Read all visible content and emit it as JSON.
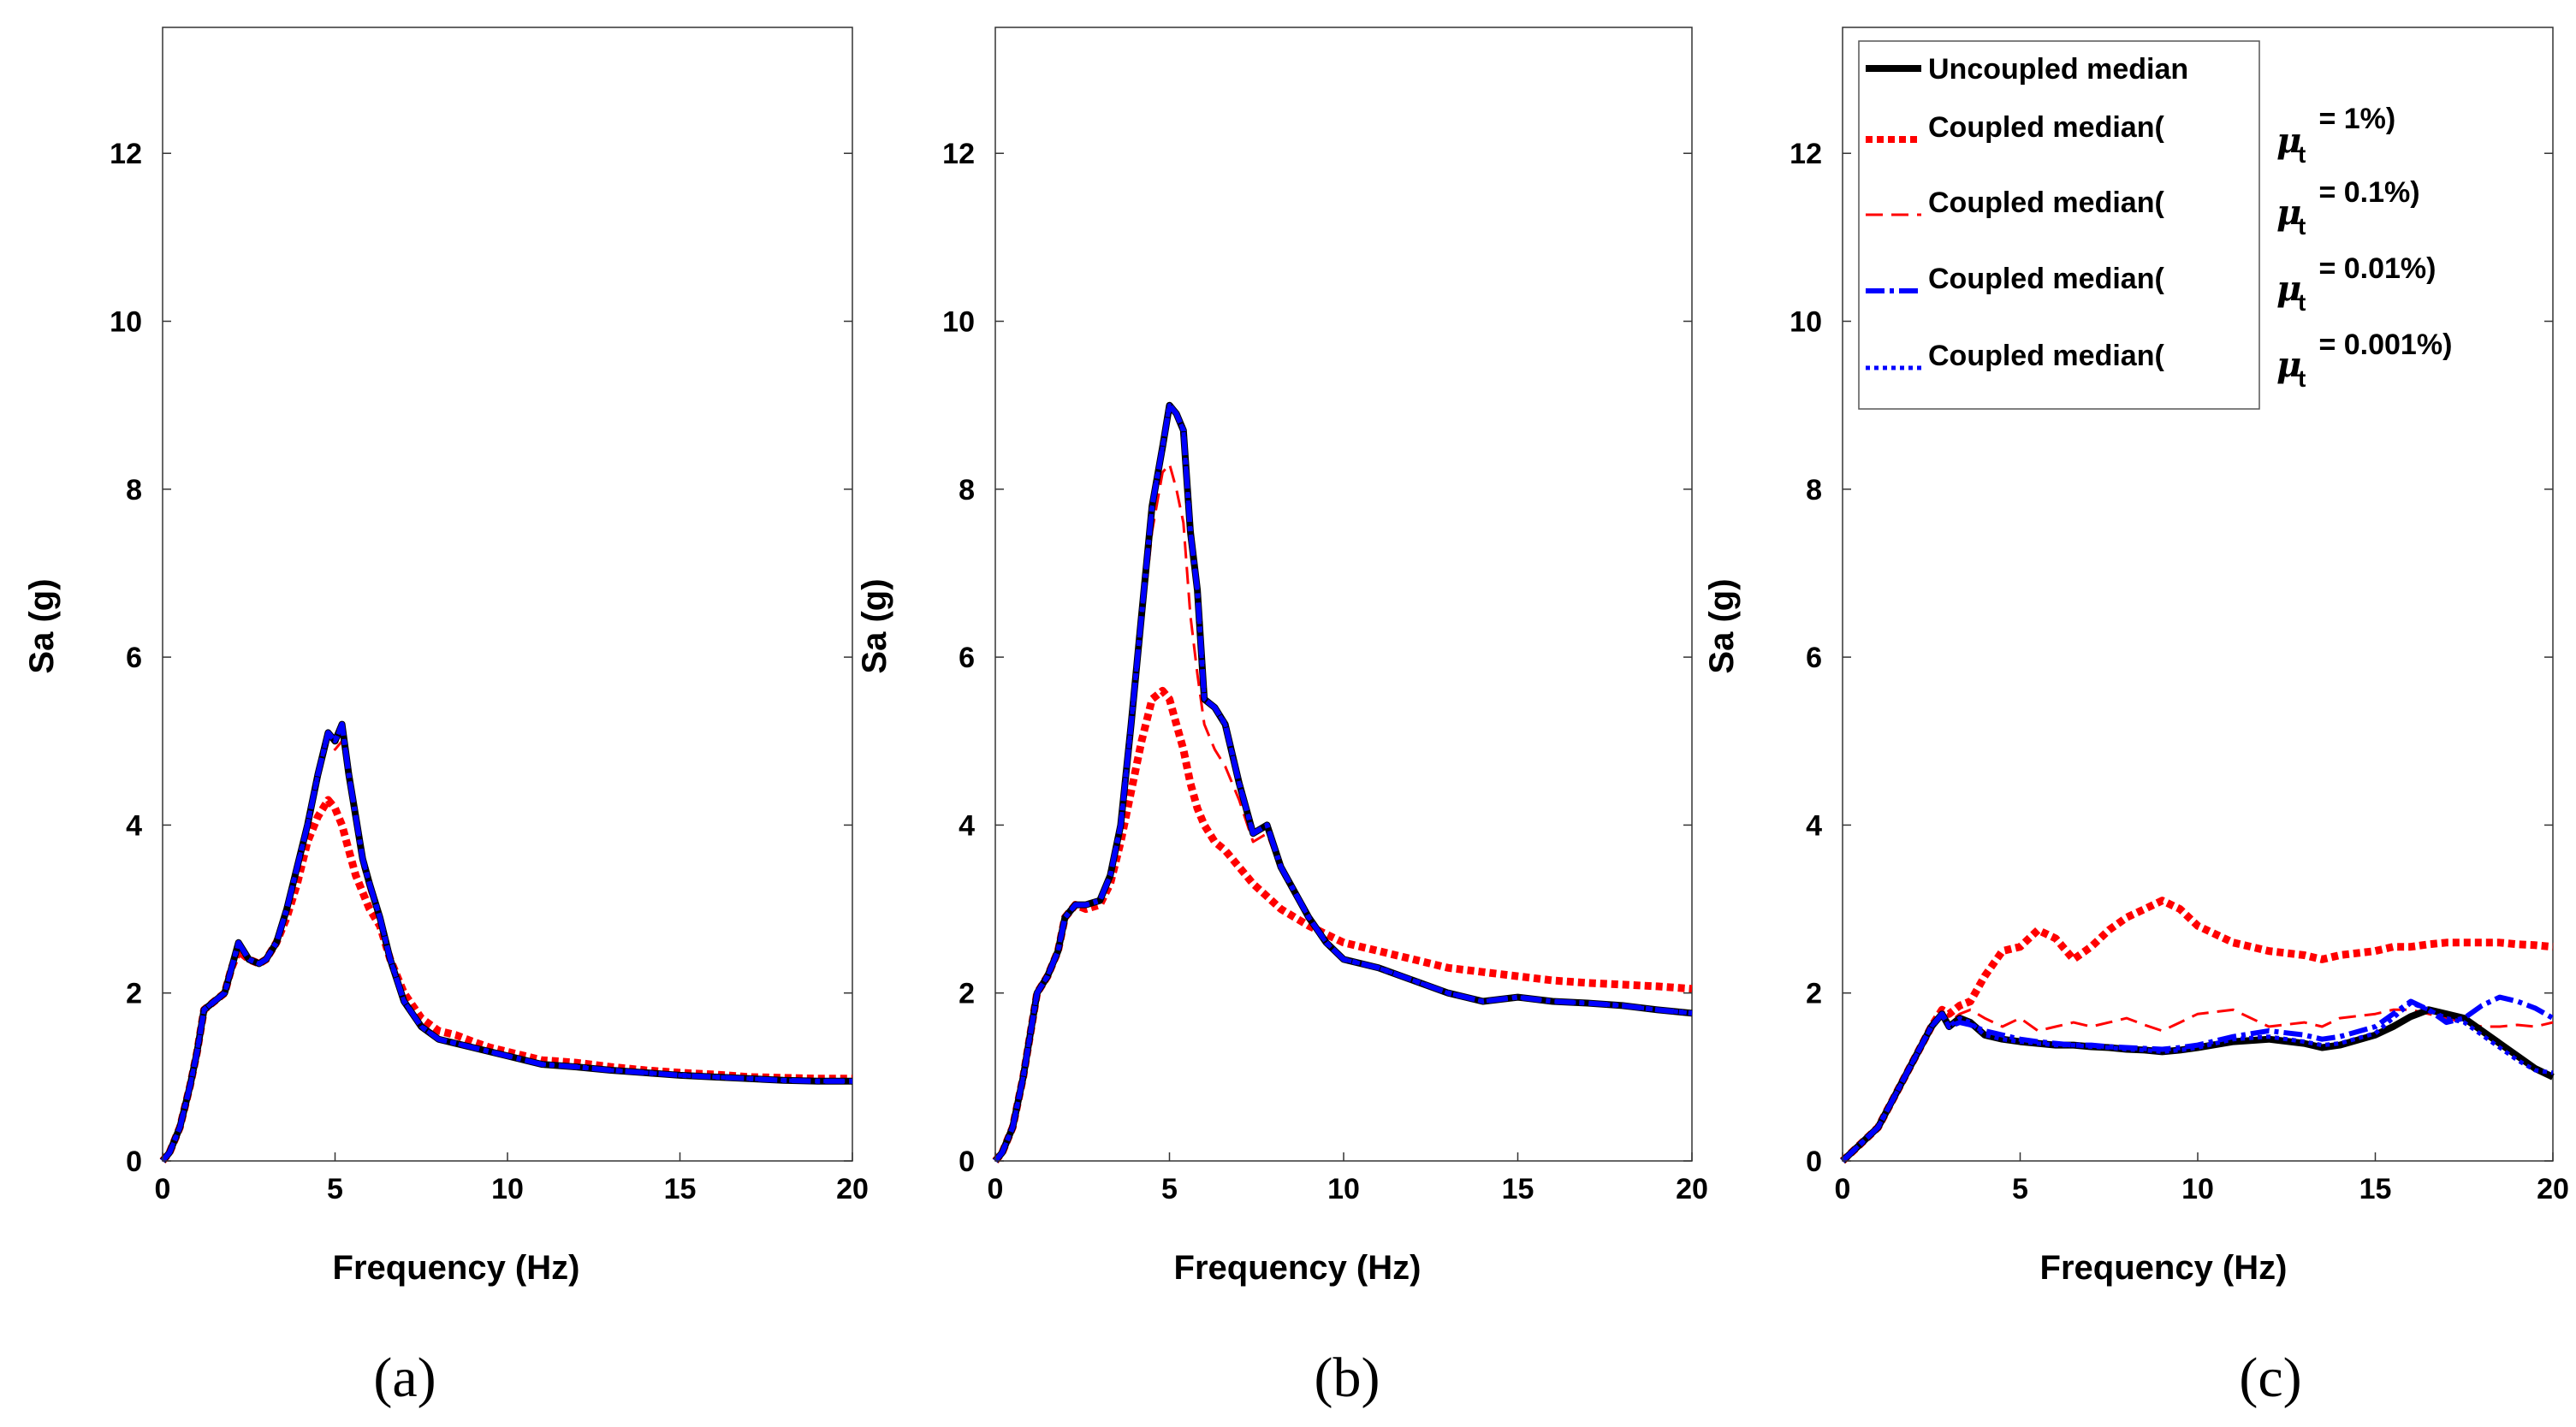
{
  "colors": {
    "uncoupled": "#000000",
    "coupled_1": "#ff0000",
    "coupled_01": "#ff0000",
    "coupled_001": "#0000ff",
    "coupled_0001": "#0000ff"
  },
  "legend": {
    "items": [
      {
        "key": "uncoupled",
        "label": "Uncoupled median",
        "mu_value": ""
      },
      {
        "key": "coupled_1",
        "label": "Coupled median(",
        "mu_value": " = 1%)"
      },
      {
        "key": "coupled_01",
        "label": "Coupled median(",
        "mu_value": " = 0.1%)"
      },
      {
        "key": "coupled_001",
        "label": "Coupled median(",
        "mu_value": " = 0.01%)"
      },
      {
        "key": "coupled_0001",
        "label": "Coupled median(",
        "mu_value": " = 0.001%)"
      }
    ],
    "mu_symbol": "μ",
    "mu_subscript": "t",
    "placement": "top-right"
  },
  "chart_data": [
    {
      "type": "line",
      "panel_label": "(a)",
      "xlabel": "Frequency (Hz)",
      "ylabel": "Sa (g)",
      "xlim": [
        0,
        20
      ],
      "ylim": [
        0,
        13.5
      ],
      "xticks": [
        "0",
        "5",
        "10",
        "15",
        "20"
      ],
      "yticks": [
        "0",
        "2",
        "4",
        "6",
        "8",
        "10",
        "12"
      ],
      "x": [
        0,
        0.2,
        0.5,
        0.8,
        1.0,
        1.2,
        1.5,
        1.8,
        2.0,
        2.2,
        2.5,
        2.8,
        3.0,
        3.3,
        3.6,
        3.9,
        4.2,
        4.5,
        4.8,
        5.0,
        5.2,
        5.4,
        5.6,
        5.8,
        6.0,
        6.3,
        6.6,
        7.0,
        7.5,
        8.0,
        8.5,
        9.0,
        9.5,
        10,
        11,
        12,
        13,
        14,
        15,
        16,
        17,
        18,
        19,
        20
      ],
      "series": [
        {
          "name": "Uncoupled median",
          "key": "uncoupled",
          "values": [
            0,
            0.1,
            0.4,
            0.9,
            1.3,
            1.8,
            1.9,
            2.0,
            2.3,
            2.6,
            2.4,
            2.35,
            2.4,
            2.6,
            3.0,
            3.5,
            4.0,
            4.6,
            5.1,
            5.0,
            5.2,
            4.6,
            4.1,
            3.6,
            3.3,
            2.9,
            2.4,
            1.9,
            1.6,
            1.45,
            1.4,
            1.35,
            1.3,
            1.25,
            1.15,
            1.12,
            1.08,
            1.05,
            1.02,
            1.0,
            0.98,
            0.96,
            0.95,
            0.95
          ]
        },
        {
          "name": "Coupled median(μt = 1%)",
          "key": "coupled_1",
          "values": [
            0,
            0.1,
            0.4,
            0.9,
            1.3,
            1.8,
            1.9,
            2.0,
            2.3,
            2.5,
            2.4,
            2.35,
            2.4,
            2.6,
            2.9,
            3.3,
            3.8,
            4.1,
            4.3,
            4.2,
            4.0,
            3.7,
            3.4,
            3.2,
            3.0,
            2.8,
            2.4,
            2.0,
            1.7,
            1.55,
            1.5,
            1.42,
            1.35,
            1.3,
            1.2,
            1.17,
            1.12,
            1.08,
            1.05,
            1.03,
            1.0,
            0.99,
            0.98,
            0.98
          ]
        },
        {
          "name": "Coupled median(μt = 0.1%)",
          "key": "coupled_01",
          "values": [
            0,
            0.1,
            0.4,
            0.9,
            1.3,
            1.8,
            1.9,
            2.0,
            2.3,
            2.6,
            2.4,
            2.35,
            2.4,
            2.6,
            3.0,
            3.5,
            4.0,
            4.5,
            5.0,
            4.9,
            5.0,
            4.5,
            4.0,
            3.5,
            3.2,
            2.9,
            2.4,
            1.9,
            1.6,
            1.45,
            1.4,
            1.35,
            1.3,
            1.25,
            1.15,
            1.12,
            1.08,
            1.05,
            1.02,
            1.0,
            0.98,
            0.96,
            0.95,
            0.95
          ]
        },
        {
          "name": "Coupled median(μt = 0.01%)",
          "key": "coupled_001",
          "values": [
            0,
            0.1,
            0.4,
            0.9,
            1.3,
            1.8,
            1.9,
            2.0,
            2.3,
            2.6,
            2.4,
            2.35,
            2.4,
            2.6,
            3.0,
            3.5,
            4.0,
            4.6,
            5.1,
            5.0,
            5.2,
            4.6,
            4.1,
            3.6,
            3.3,
            2.9,
            2.4,
            1.9,
            1.6,
            1.45,
            1.4,
            1.35,
            1.3,
            1.25,
            1.15,
            1.12,
            1.08,
            1.05,
            1.02,
            1.0,
            0.98,
            0.96,
            0.95,
            0.95
          ]
        },
        {
          "name": "Coupled median(μt = 0.001%)",
          "key": "coupled_0001",
          "values": [
            0,
            0.1,
            0.4,
            0.9,
            1.3,
            1.8,
            1.9,
            2.0,
            2.3,
            2.6,
            2.4,
            2.35,
            2.4,
            2.6,
            3.0,
            3.5,
            4.0,
            4.6,
            5.1,
            5.0,
            5.2,
            4.6,
            4.1,
            3.6,
            3.3,
            2.9,
            2.4,
            1.9,
            1.6,
            1.45,
            1.4,
            1.35,
            1.3,
            1.25,
            1.15,
            1.12,
            1.08,
            1.05,
            1.02,
            1.0,
            0.98,
            0.96,
            0.95,
            0.95
          ]
        }
      ]
    },
    {
      "type": "line",
      "panel_label": "(b)",
      "xlabel": "Frequency (Hz)",
      "ylabel": "Sa (g)",
      "xlim": [
        0,
        20
      ],
      "ylim": [
        0,
        13.5
      ],
      "xticks": [
        "0",
        "5",
        "10",
        "15",
        "20"
      ],
      "yticks": [
        "0",
        "2",
        "4",
        "6",
        "8",
        "10",
        "12"
      ],
      "x": [
        0,
        0.2,
        0.5,
        0.8,
        1.0,
        1.2,
        1.5,
        1.8,
        2.0,
        2.3,
        2.6,
        3.0,
        3.3,
        3.6,
        3.9,
        4.2,
        4.5,
        4.8,
        5.0,
        5.2,
        5.4,
        5.6,
        5.8,
        6.0,
        6.3,
        6.6,
        7.0,
        7.4,
        7.8,
        8.2,
        8.6,
        9.0,
        9.5,
        10,
        11,
        12,
        13,
        14,
        15,
        16,
        17,
        18,
        19,
        20
      ],
      "series": [
        {
          "name": "Uncoupled median",
          "key": "uncoupled",
          "values": [
            0,
            0.1,
            0.4,
            1.0,
            1.5,
            2.0,
            2.2,
            2.5,
            2.9,
            3.05,
            3.05,
            3.1,
            3.4,
            4.0,
            5.2,
            6.5,
            7.8,
            8.5,
            9.0,
            8.9,
            8.7,
            7.5,
            6.8,
            5.5,
            5.4,
            5.2,
            4.5,
            3.9,
            4.0,
            3.5,
            3.2,
            2.9,
            2.6,
            2.4,
            2.3,
            2.15,
            2.0,
            1.9,
            1.95,
            1.9,
            1.88,
            1.85,
            1.8,
            1.76
          ]
        },
        {
          "name": "Coupled median(μt = 1%)",
          "key": "coupled_1",
          "values": [
            0,
            0.1,
            0.4,
            1.0,
            1.5,
            2.0,
            2.2,
            2.5,
            2.9,
            3.05,
            3.0,
            3.05,
            3.3,
            3.8,
            4.4,
            5.0,
            5.5,
            5.6,
            5.5,
            5.2,
            4.9,
            4.5,
            4.2,
            4.0,
            3.8,
            3.7,
            3.5,
            3.3,
            3.15,
            3.0,
            2.9,
            2.8,
            2.7,
            2.6,
            2.5,
            2.4,
            2.3,
            2.25,
            2.2,
            2.15,
            2.12,
            2.1,
            2.08,
            2.05
          ]
        },
        {
          "name": "Coupled median(μt = 0.1%)",
          "key": "coupled_01",
          "values": [
            0,
            0.1,
            0.4,
            1.0,
            1.5,
            2.0,
            2.2,
            2.5,
            2.9,
            3.05,
            3.05,
            3.1,
            3.4,
            4.0,
            5.0,
            6.3,
            7.5,
            8.2,
            8.3,
            8.0,
            7.6,
            6.5,
            5.8,
            5.2,
            4.9,
            4.7,
            4.3,
            3.8,
            3.9,
            3.45,
            3.15,
            2.9,
            2.6,
            2.4,
            2.3,
            2.15,
            2.0,
            1.9,
            1.95,
            1.9,
            1.88,
            1.85,
            1.8,
            1.76
          ]
        },
        {
          "name": "Coupled median(μt = 0.01%)",
          "key": "coupled_001",
          "values": [
            0,
            0.1,
            0.4,
            1.0,
            1.5,
            2.0,
            2.2,
            2.5,
            2.9,
            3.05,
            3.05,
            3.1,
            3.4,
            4.0,
            5.2,
            6.5,
            7.8,
            8.5,
            9.0,
            8.9,
            8.7,
            7.5,
            6.8,
            5.5,
            5.4,
            5.2,
            4.5,
            3.9,
            4.0,
            3.5,
            3.2,
            2.9,
            2.6,
            2.4,
            2.3,
            2.15,
            2.0,
            1.9,
            1.95,
            1.9,
            1.88,
            1.85,
            1.8,
            1.76
          ]
        },
        {
          "name": "Coupled median(μt = 0.001%)",
          "key": "coupled_0001",
          "values": [
            0,
            0.1,
            0.4,
            1.0,
            1.5,
            2.0,
            2.2,
            2.5,
            2.9,
            3.05,
            3.05,
            3.1,
            3.4,
            4.0,
            5.2,
            6.5,
            7.8,
            8.5,
            9.0,
            8.9,
            8.7,
            7.5,
            6.8,
            5.5,
            5.4,
            5.2,
            4.5,
            3.9,
            4.0,
            3.5,
            3.2,
            2.9,
            2.6,
            2.4,
            2.3,
            2.15,
            2.0,
            1.9,
            1.95,
            1.9,
            1.88,
            1.85,
            1.8,
            1.76
          ]
        }
      ]
    },
    {
      "type": "line",
      "panel_label": "(c)",
      "xlabel": "Frequency (Hz)",
      "ylabel": "Sa (g)",
      "xlim": [
        0,
        20
      ],
      "ylim": [
        0,
        13.5
      ],
      "xticks": [
        "0",
        "5",
        "10",
        "15",
        "20"
      ],
      "yticks": [
        "0",
        "2",
        "4",
        "6",
        "8",
        "10",
        "12"
      ],
      "x": [
        0,
        0.5,
        1.0,
        1.5,
        2.0,
        2.5,
        2.8,
        3.0,
        3.3,
        3.6,
        4.0,
        4.5,
        5.0,
        5.5,
        6.0,
        6.5,
        7.0,
        7.5,
        8.0,
        8.5,
        9.0,
        9.5,
        10,
        11,
        12,
        13,
        13.5,
        14,
        15,
        15.5,
        16,
        16.5,
        17,
        17.5,
        18,
        18.5,
        19,
        19.5,
        20
      ],
      "series": [
        {
          "name": "Uncoupled median",
          "key": "uncoupled",
          "values": [
            0,
            0.2,
            0.4,
            0.8,
            1.2,
            1.6,
            1.75,
            1.6,
            1.7,
            1.65,
            1.5,
            1.45,
            1.42,
            1.4,
            1.38,
            1.38,
            1.36,
            1.35,
            1.33,
            1.32,
            1.3,
            1.32,
            1.35,
            1.42,
            1.45,
            1.4,
            1.35,
            1.38,
            1.5,
            1.6,
            1.72,
            1.8,
            1.75,
            1.7,
            1.55,
            1.4,
            1.25,
            1.1,
            1.0
          ]
        },
        {
          "name": "Coupled median(μt = 1%)",
          "key": "coupled_1",
          "values": [
            0,
            0.2,
            0.4,
            0.8,
            1.2,
            1.6,
            1.8,
            1.75,
            1.85,
            1.9,
            2.2,
            2.5,
            2.55,
            2.75,
            2.65,
            2.4,
            2.55,
            2.75,
            2.9,
            3.0,
            3.1,
            3.0,
            2.8,
            2.6,
            2.5,
            2.45,
            2.4,
            2.45,
            2.5,
            2.55,
            2.55,
            2.58,
            2.6,
            2.6,
            2.6,
            2.6,
            2.58,
            2.57,
            2.55
          ]
        },
        {
          "name": "Coupled median(μt = 0.1%)",
          "key": "coupled_01",
          "values": [
            0,
            0.2,
            0.4,
            0.8,
            1.2,
            1.6,
            1.8,
            1.65,
            1.75,
            1.8,
            1.7,
            1.6,
            1.7,
            1.55,
            1.6,
            1.65,
            1.6,
            1.65,
            1.7,
            1.62,
            1.55,
            1.65,
            1.75,
            1.8,
            1.6,
            1.65,
            1.6,
            1.7,
            1.75,
            1.8,
            1.8,
            1.75,
            1.7,
            1.65,
            1.6,
            1.6,
            1.62,
            1.6,
            1.65
          ]
        },
        {
          "name": "Coupled median(μt = 0.01%)",
          "key": "coupled_001",
          "values": [
            0,
            0.2,
            0.4,
            0.8,
            1.2,
            1.6,
            1.75,
            1.6,
            1.65,
            1.62,
            1.55,
            1.5,
            1.45,
            1.42,
            1.4,
            1.38,
            1.38,
            1.36,
            1.35,
            1.34,
            1.33,
            1.35,
            1.38,
            1.48,
            1.55,
            1.5,
            1.45,
            1.48,
            1.6,
            1.75,
            1.9,
            1.8,
            1.65,
            1.7,
            1.85,
            1.95,
            1.9,
            1.82,
            1.7
          ]
        },
        {
          "name": "Coupled median(μt = 0.001%)",
          "key": "coupled_0001",
          "values": [
            0,
            0.2,
            0.4,
            0.8,
            1.2,
            1.6,
            1.75,
            1.6,
            1.7,
            1.65,
            1.5,
            1.45,
            1.42,
            1.4,
            1.38,
            1.38,
            1.36,
            1.35,
            1.33,
            1.32,
            1.3,
            1.32,
            1.35,
            1.45,
            1.48,
            1.42,
            1.38,
            1.4,
            1.52,
            1.7,
            1.88,
            1.8,
            1.7,
            1.65,
            1.5,
            1.35,
            1.2,
            1.08,
            1.05
          ]
        }
      ]
    }
  ]
}
